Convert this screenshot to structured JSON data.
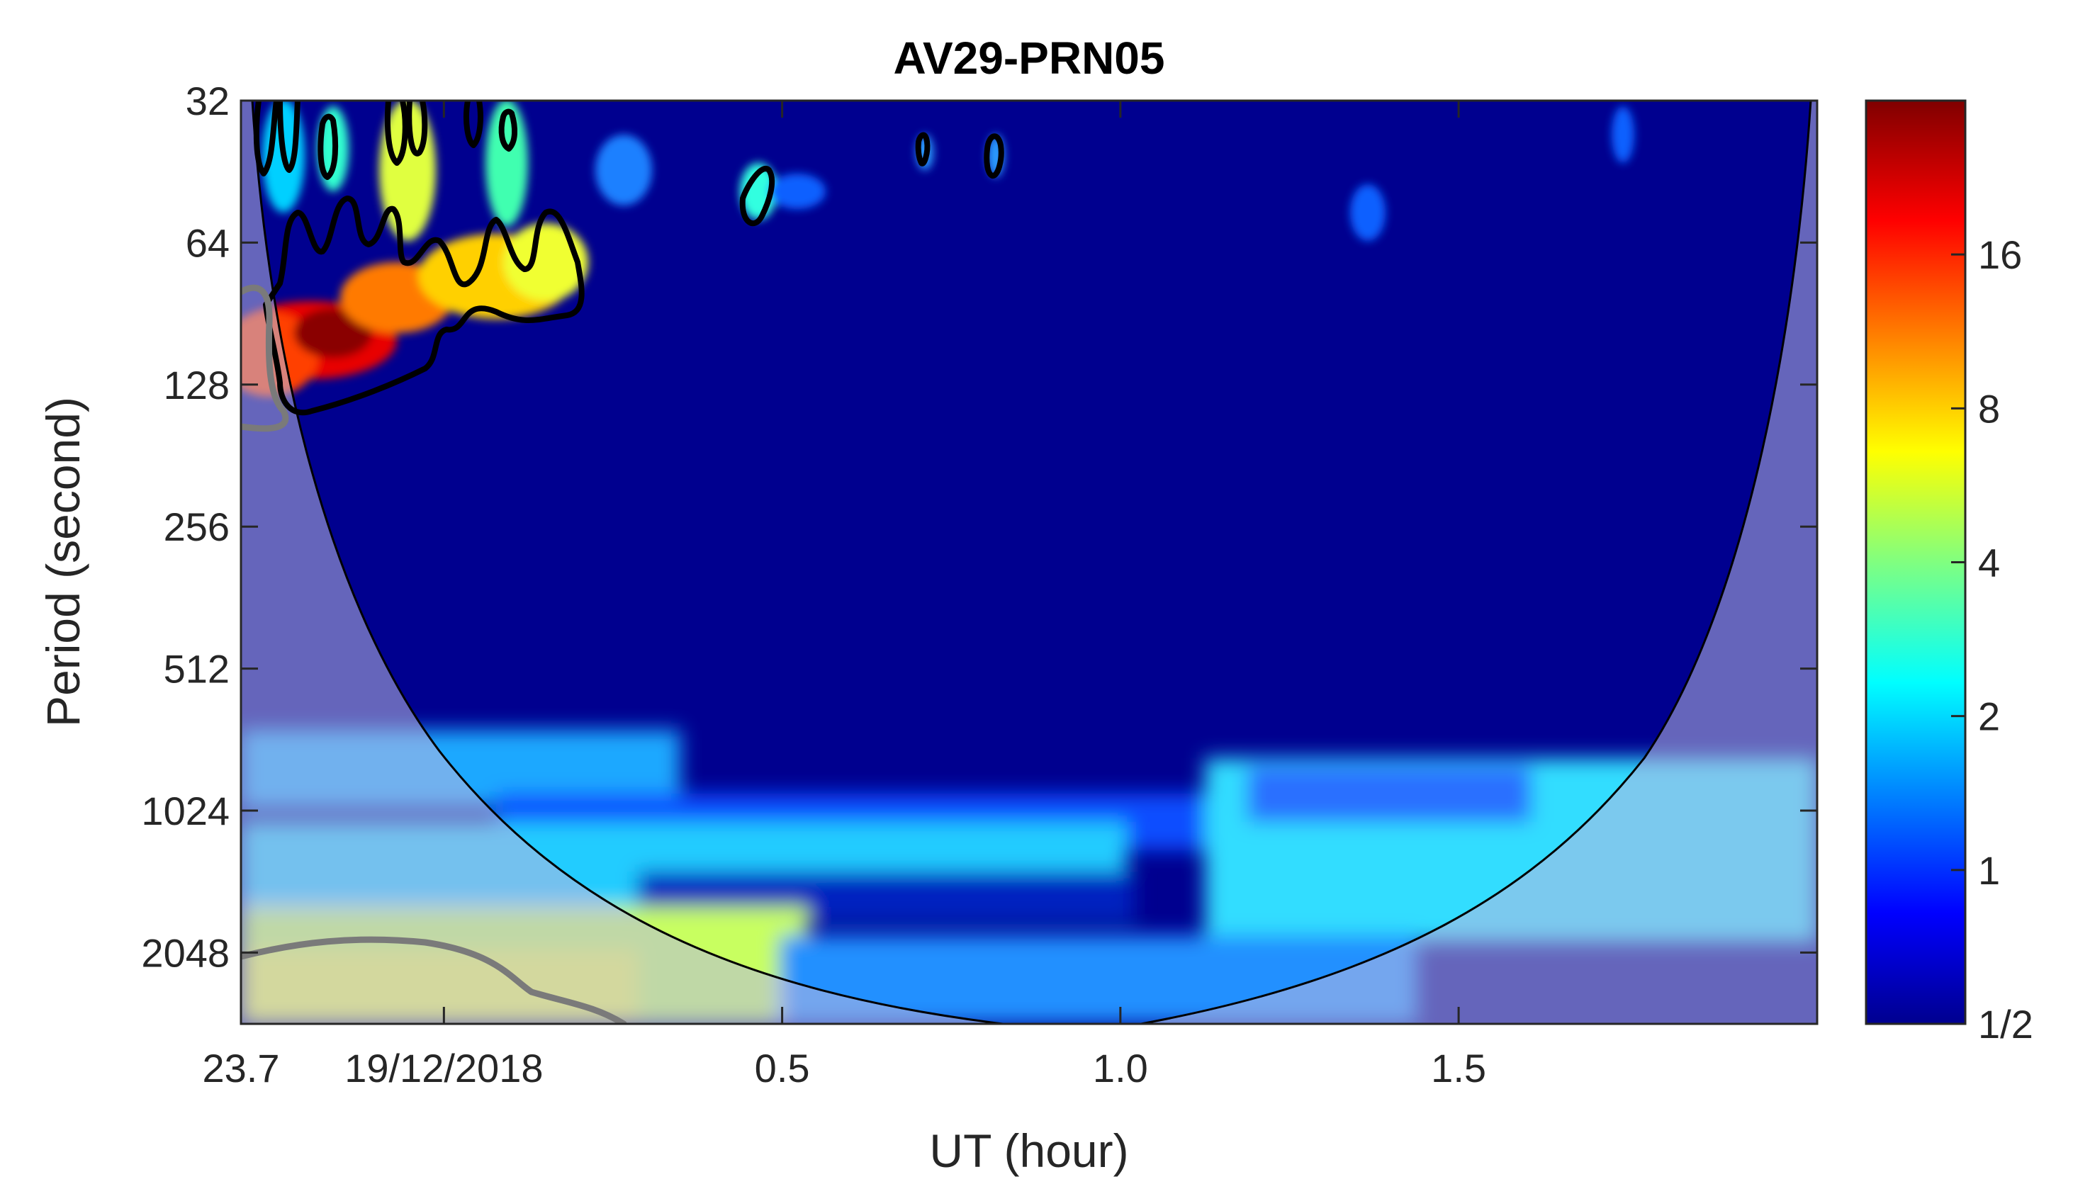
{
  "chart_data": {
    "type": "heatmap",
    "title": "AV29-PRN05",
    "xlabel": "UT (hour)",
    "ylabel": "Period (second)",
    "x_ticks": [
      {
        "value": 23.7,
        "label": "23.7"
      },
      {
        "value": 24.0,
        "label": "19/12/2018"
      },
      {
        "value": 24.5,
        "label": "0.5"
      },
      {
        "value": 25.0,
        "label": "1.0"
      },
      {
        "value": 25.5,
        "label": "1.5"
      }
    ],
    "xlim": [
      23.7,
      26.03
    ],
    "y_scale": "log2",
    "y_direction": "reversed",
    "y_ticks": [
      32,
      64,
      128,
      256,
      512,
      1024,
      2048
    ],
    "y_tick_labels": [
      "32",
      "64",
      "128",
      "256",
      "512",
      "1024",
      "2048"
    ],
    "ylim": [
      32,
      2900
    ],
    "colorbar": {
      "scale": "log2",
      "range": [
        0.5,
        32
      ],
      "ticks": [
        0.5,
        1,
        2,
        4,
        8,
        16
      ],
      "tick_labels": [
        "1/2",
        "1",
        "2",
        "4",
        "8",
        "16"
      ],
      "colormap": "jet"
    },
    "annotations": {
      "cone_of_influence": "shaded region outside the U-shaped curve",
      "significance_contours": "black contours around high-power patches at short periods near the start; gray contours outside the cone"
    },
    "power_features": [
      {
        "x_range": [
          23.7,
          23.95
        ],
        "period_range": [
          85,
          130
        ],
        "level": 24
      },
      {
        "x_range": [
          23.8,
          24.1
        ],
        "period_range": [
          64,
          110
        ],
        "level": 12
      },
      {
        "x_range": [
          24.05,
          24.2
        ],
        "period_range": [
          32,
          90
        ],
        "level": 8
      },
      {
        "x_range": [
          23.7,
          24.3
        ],
        "period_range": [
          2048,
          2900
        ],
        "level": 6
      },
      {
        "x_range": [
          24.1,
          25.6
        ],
        "period_range": [
          1200,
          1500
        ],
        "level": 2
      },
      {
        "x_range": [
          25.3,
          26.03
        ],
        "period_range": [
          900,
          2400
        ],
        "level": 2
      }
    ]
  }
}
